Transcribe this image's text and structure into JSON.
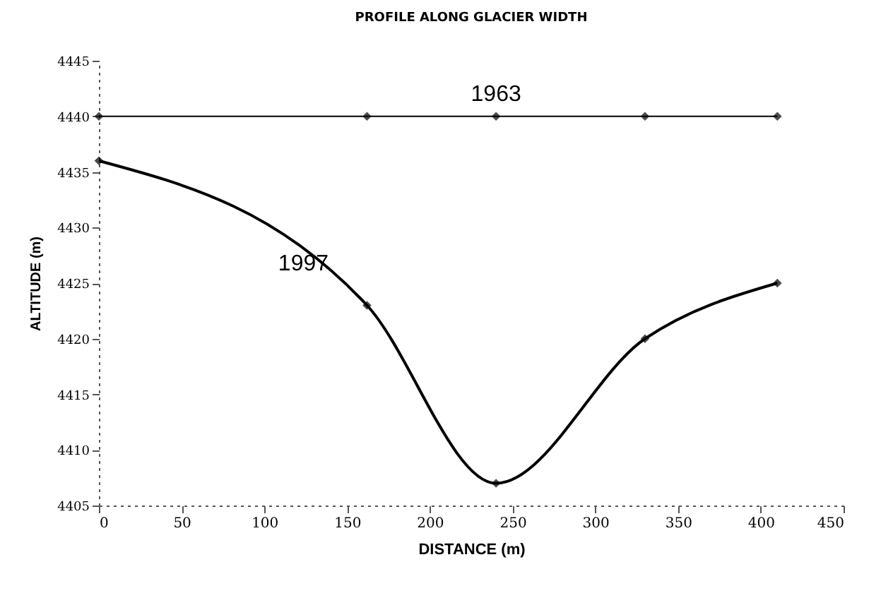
{
  "chart_data": {
    "type": "line",
    "title": "PROFILE ALONG GLACIER WIDTH",
    "xlabel": "DISTANCE (m)",
    "ylabel": "ALTITUDE (m)",
    "x": [
      0,
      162,
      240,
      330,
      410
    ],
    "series": [
      {
        "name": "1963",
        "color": "#000000",
        "values": [
          4440,
          4440,
          4440,
          4440,
          4440
        ]
      },
      {
        "name": "1997",
        "color": "#000000",
        "values": [
          4436,
          4423,
          4407,
          4420,
          4425
        ]
      }
    ],
    "xlim": [
      0,
      450
    ],
    "xticks": [
      0,
      50,
      100,
      150,
      200,
      250,
      300,
      350,
      400,
      450
    ],
    "ylim": [
      4405,
      4445
    ],
    "yticks": [
      4405,
      4410,
      4415,
      4420,
      4425,
      4430,
      4435,
      4440,
      4445
    ],
    "grid": false,
    "legend": false,
    "marker": "diamond",
    "line_style": "solid"
  }
}
